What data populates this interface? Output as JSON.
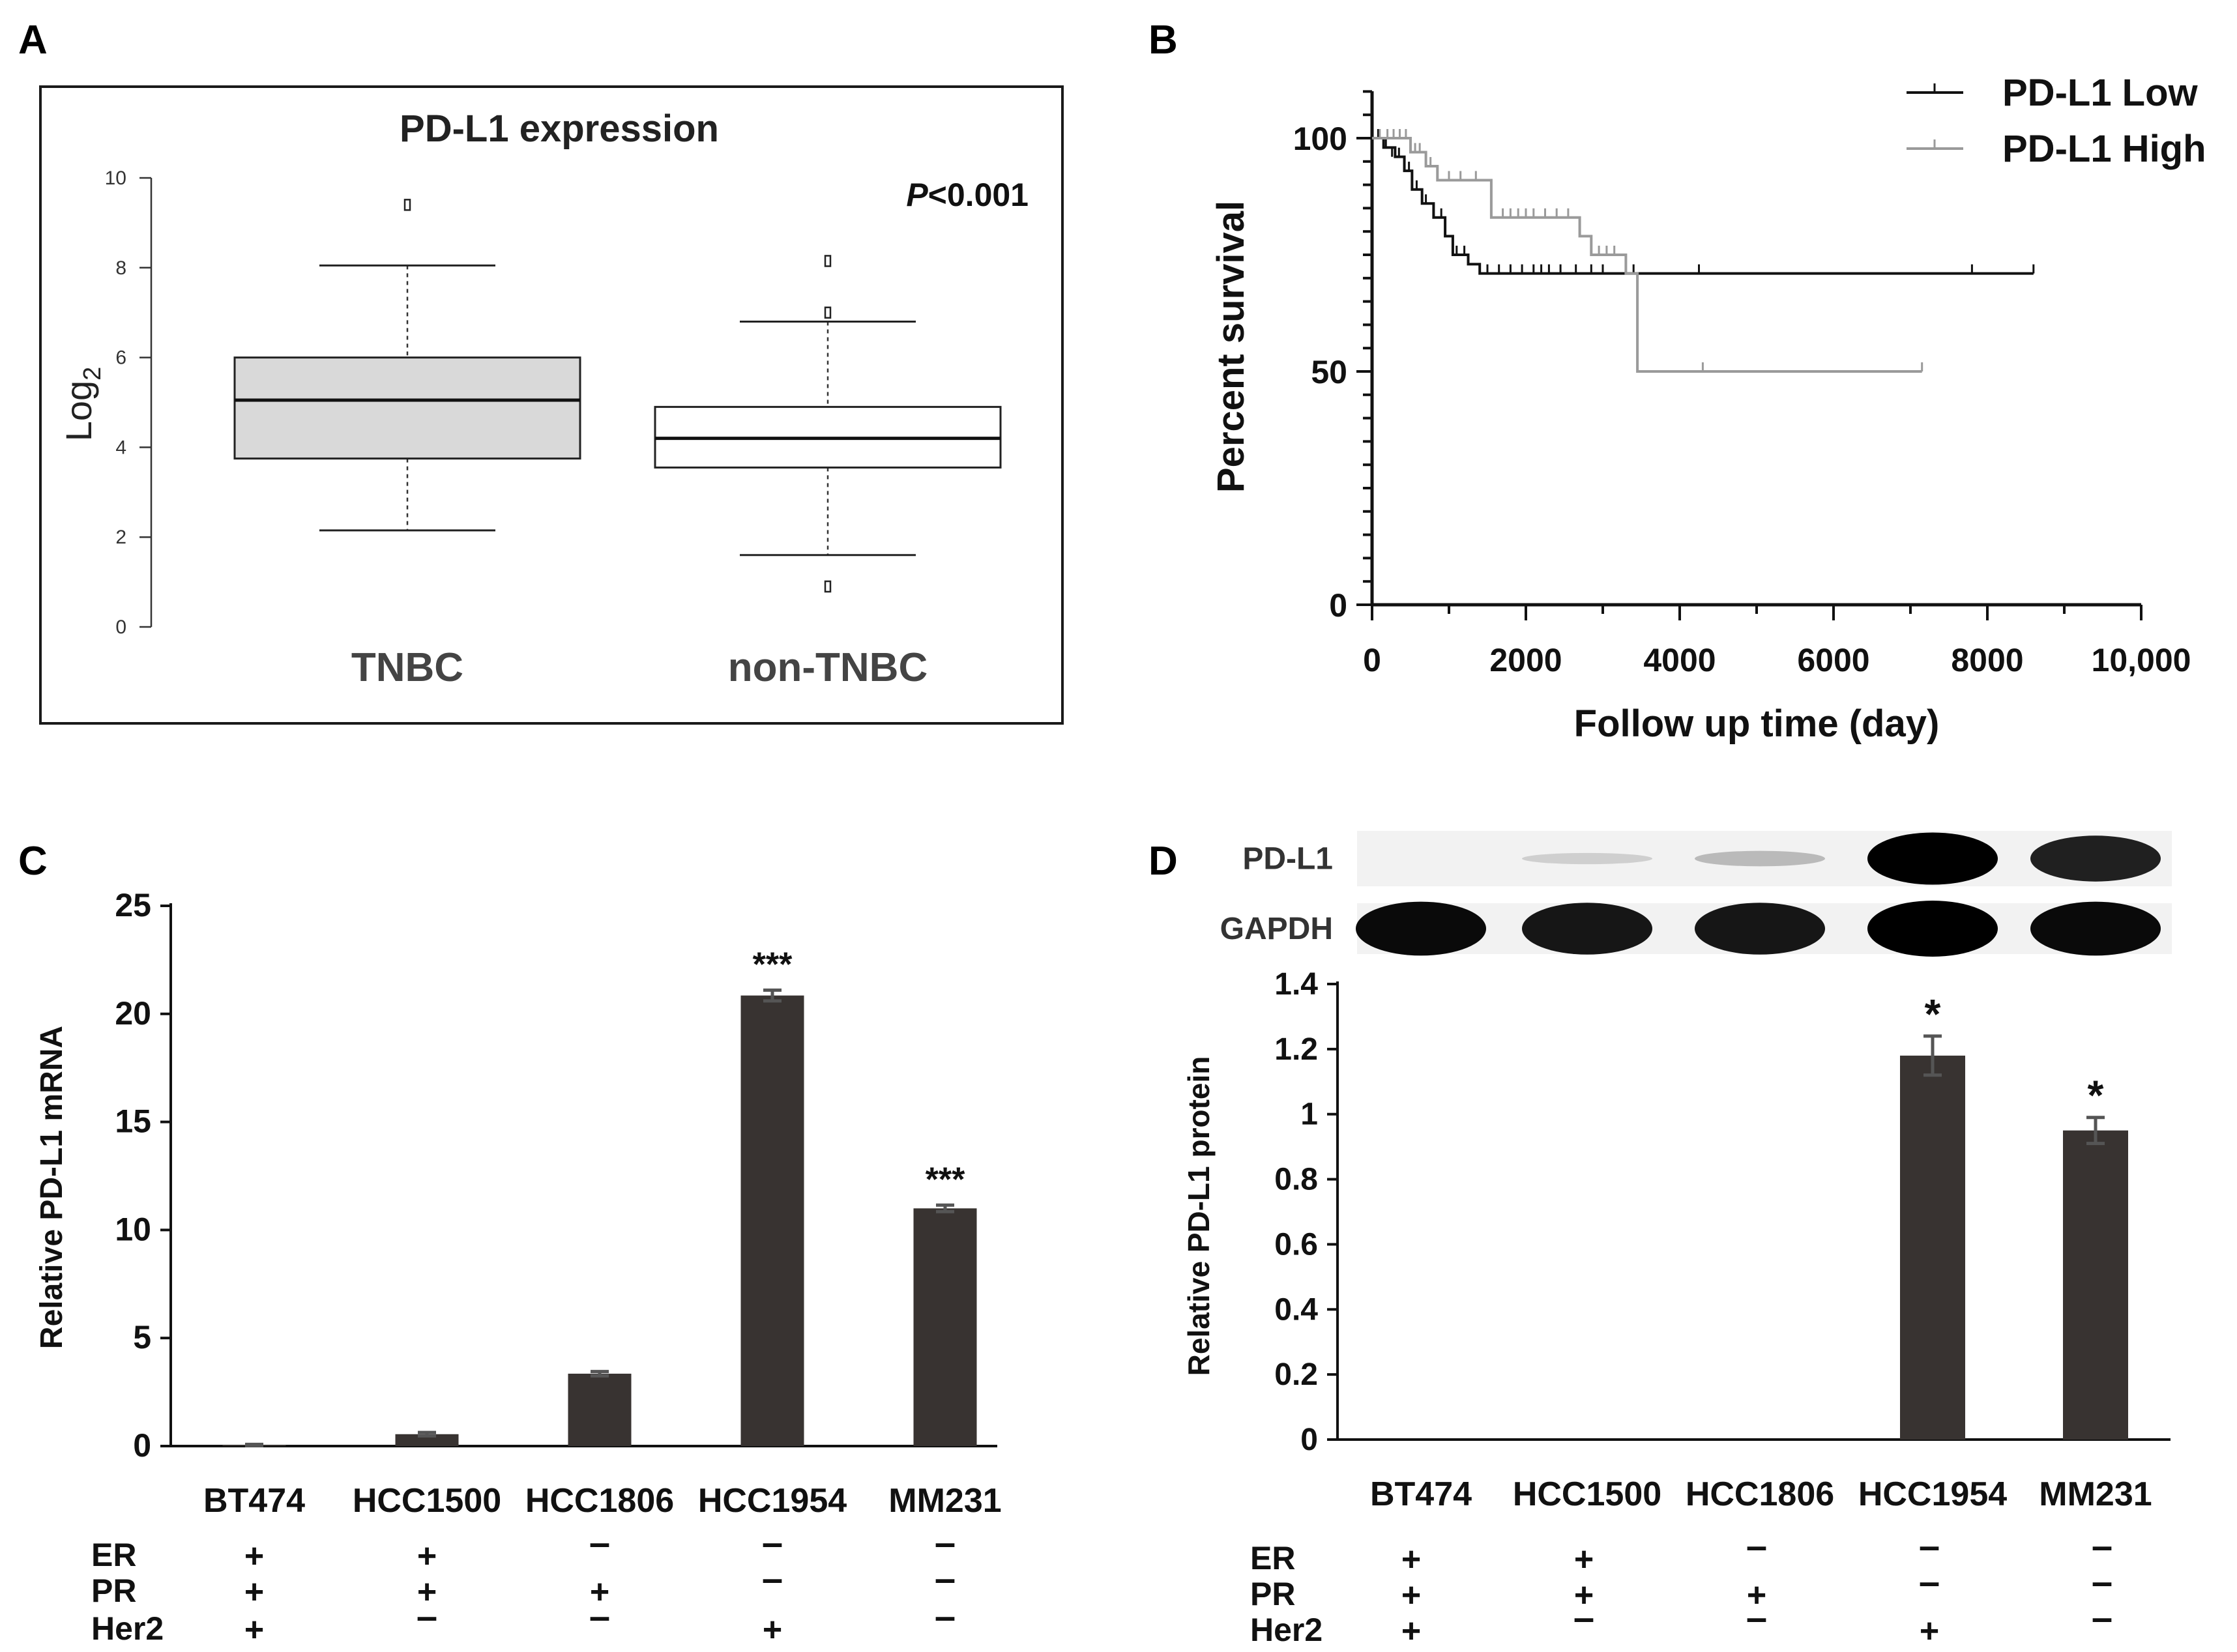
{
  "panels": {
    "A": {
      "letter": "A"
    },
    "B": {
      "letter": "B"
    },
    "C": {
      "letter": "C"
    },
    "D": {
      "letter": "D"
    }
  },
  "chart_data": [
    {
      "id": "A",
      "type": "box",
      "title": "PD-L1 expression",
      "ylabel": "Log",
      "ylabel_sub": "2",
      "ylim": [
        0,
        10
      ],
      "yticks": [
        0,
        2,
        4,
        6,
        8,
        10
      ],
      "annotation_p": "P",
      "annotation_rest": "<0.001",
      "colors": {
        "TNBC": "#d9d9d9",
        "non-TNBC": "#ffffff"
      },
      "groups": [
        {
          "name": "TNBC",
          "whisker_low": 2.15,
          "q1": 3.75,
          "median": 5.05,
          "q3": 6.0,
          "whisker_high": 8.05,
          "outliers": [
            9.4
          ]
        },
        {
          "name": "non-TNBC",
          "whisker_low": 1.6,
          "q1": 3.55,
          "median": 4.2,
          "q3": 4.9,
          "whisker_high": 6.8,
          "outliers": [
            8.15,
            7.0,
            0.9
          ]
        }
      ]
    },
    {
      "id": "B",
      "type": "line",
      "subtype": "kaplan-meier",
      "xlabel": "Follow up time (day)",
      "ylabel": "Percent survival",
      "xlim": [
        0,
        10000
      ],
      "ylim": [
        0,
        100
      ],
      "xticks": [
        "0",
        "2000",
        "4000",
        "6000",
        "8000",
        "10,000"
      ],
      "xtick_values": [
        0,
        2000,
        4000,
        6000,
        8000,
        10000
      ],
      "yticks": [
        0,
        50,
        100
      ],
      "legend_position": "top-right",
      "series": [
        {
          "name": "PD-L1 Low",
          "color": "#111111",
          "steps": [
            [
              0,
              100
            ],
            [
              150,
              98
            ],
            [
              300,
              96
            ],
            [
              420,
              93
            ],
            [
              520,
              89
            ],
            [
              650,
              86
            ],
            [
              800,
              83
            ],
            [
              950,
              79
            ],
            [
              1050,
              75
            ],
            [
              1250,
              73
            ],
            [
              1400,
              71
            ],
            [
              8600,
              71
            ]
          ],
          "censors": [
            [
              80,
              100
            ],
            [
              180,
              98
            ],
            [
              260,
              96
            ],
            [
              350,
              96
            ],
            [
              480,
              93
            ],
            [
              580,
              89
            ],
            [
              700,
              86
            ],
            [
              900,
              83
            ],
            [
              1100,
              75
            ],
            [
              1200,
              75
            ],
            [
              1500,
              71
            ],
            [
              1650,
              71
            ],
            [
              1800,
              71
            ],
            [
              1950,
              71
            ],
            [
              2100,
              71
            ],
            [
              2200,
              71
            ],
            [
              2300,
              71
            ],
            [
              2450,
              71
            ],
            [
              2650,
              71
            ],
            [
              2850,
              71
            ],
            [
              3000,
              71
            ],
            [
              3400,
              71
            ],
            [
              4250,
              71
            ],
            [
              7800,
              71
            ],
            [
              8600,
              71
            ]
          ]
        },
        {
          "name": "PD-L1 High",
          "color": "#9a9a9a",
          "steps": [
            [
              0,
              100
            ],
            [
              500,
              97
            ],
            [
              700,
              94
            ],
            [
              850,
              91
            ],
            [
              1550,
              83
            ],
            [
              2700,
              79
            ],
            [
              2850,
              75
            ],
            [
              3300,
              71
            ],
            [
              3450,
              50
            ],
            [
              7150,
              50
            ]
          ],
          "censors": [
            [
              100,
              100
            ],
            [
              200,
              100
            ],
            [
              280,
              100
            ],
            [
              360,
              100
            ],
            [
              440,
              100
            ],
            [
              560,
              97
            ],
            [
              620,
              97
            ],
            [
              760,
              94
            ],
            [
              1000,
              91
            ],
            [
              1150,
              91
            ],
            [
              1350,
              91
            ],
            [
              1700,
              83
            ],
            [
              1800,
              83
            ],
            [
              1900,
              83
            ],
            [
              2000,
              83
            ],
            [
              2100,
              83
            ],
            [
              2250,
              83
            ],
            [
              2400,
              83
            ],
            [
              2550,
              83
            ],
            [
              2950,
              75
            ],
            [
              3050,
              75
            ],
            [
              3150,
              75
            ],
            [
              4300,
              50
            ],
            [
              7150,
              50
            ]
          ]
        }
      ]
    },
    {
      "id": "C",
      "type": "bar",
      "ylabel": "Relative PD-L1 mRNA",
      "ylim": [
        0,
        25
      ],
      "yticks": [
        0,
        5,
        10,
        15,
        20,
        25
      ],
      "bar_color": "#383331",
      "categories": [
        "BT474",
        "HCC1500",
        "HCC1806",
        "HCC1954",
        "MM231"
      ],
      "values": [
        0.05,
        0.55,
        3.35,
        20.85,
        11.0
      ],
      "errors": [
        0.03,
        0.08,
        0.1,
        0.25,
        0.15
      ],
      "significance": [
        "",
        "",
        "",
        "***",
        "***"
      ]
    },
    {
      "id": "D",
      "type": "bar",
      "ylabel": "Relative PD-L1 protein",
      "ylim": [
        0,
        1.4
      ],
      "yticks": [
        "0",
        "0.2",
        "0.4",
        "0.6",
        "0.8",
        "1",
        "1.2",
        "1.4"
      ],
      "ytick_values": [
        0,
        0.2,
        0.4,
        0.6,
        0.8,
        1.0,
        1.2,
        1.4
      ],
      "bar_color": "#383331",
      "categories": [
        "BT474",
        "HCC1500",
        "HCC1806",
        "HCC1954",
        "MM231"
      ],
      "values": [
        0,
        0,
        0,
        1.18,
        0.95
      ],
      "errors": [
        0,
        0,
        0,
        0.06,
        0.04
      ],
      "significance": [
        "",
        "",
        "",
        "*",
        "*"
      ]
    }
  ],
  "blot": {
    "labels": [
      "PD-L1",
      "GAPDH"
    ],
    "intensities": {
      "PD-L1": [
        0.0,
        0.02,
        0.12,
        1.0,
        0.85
      ],
      "GAPDH": [
        0.95,
        0.9,
        0.9,
        1.0,
        0.95
      ]
    }
  },
  "receptor_table": {
    "rows": [
      {
        "label": "ER",
        "values": [
          "+",
          "+",
          "–",
          "–",
          "–"
        ]
      },
      {
        "label": "PR",
        "values": [
          "+",
          "+",
          "+",
          "–",
          "–"
        ]
      },
      {
        "label": "Her2",
        "values": [
          "+",
          "–",
          "–",
          "+",
          "–"
        ]
      }
    ]
  }
}
